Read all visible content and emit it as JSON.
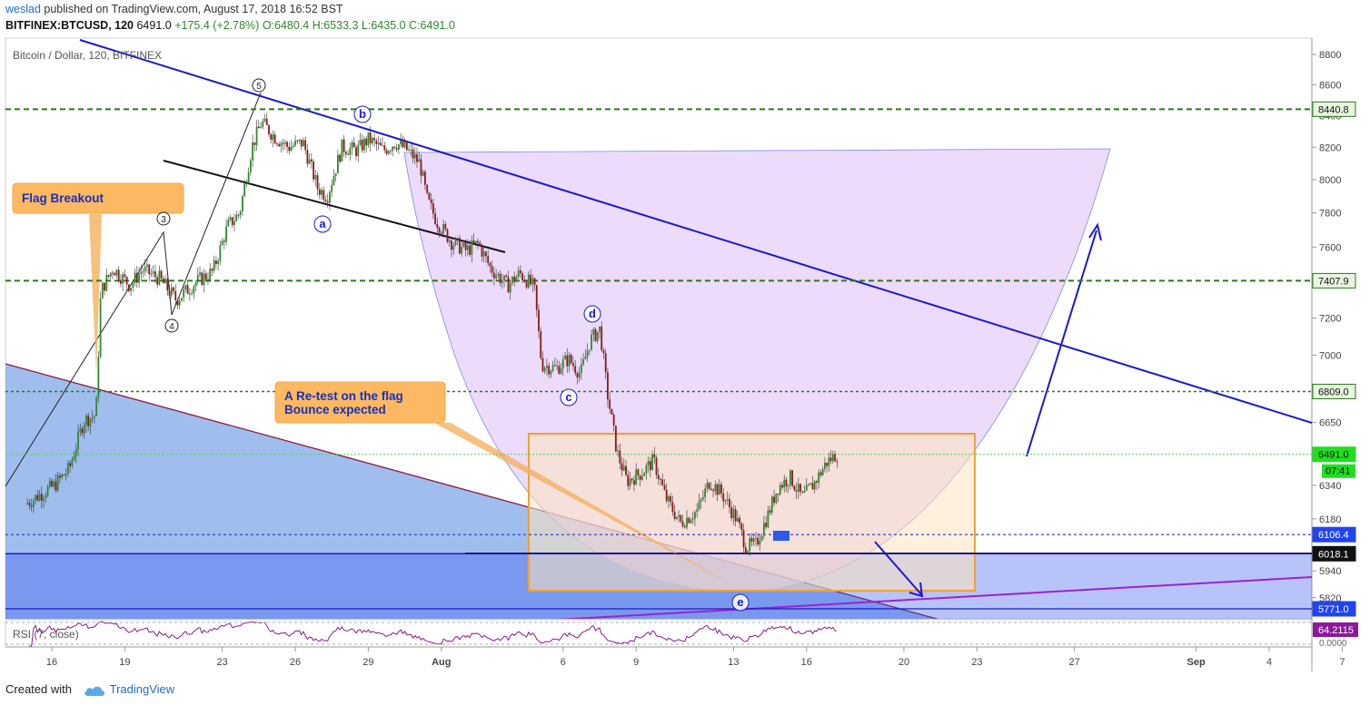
{
  "header": {
    "author": "weslad",
    "published": "published on TradingView.com, August 17, 2018 16:52 BST",
    "symbol": "BITFINEX:BTCUSD, 120",
    "last": "6491.0",
    "change": "+175.4 (+2.78%)",
    "ohlc": "O:6480.4 H:6533.3 L:6435.0 C:6491.0"
  },
  "footer": {
    "created_with": "Created with",
    "brand": "TradingView"
  },
  "chart_data": {
    "type": "candlestick",
    "title": "Bitcoin / Dollar, 120, BITFINEX",
    "y_axis": {
      "min": 5720,
      "max": 8890,
      "ticks": [
        8800,
        8600,
        8400,
        8200,
        8000,
        7800,
        7600,
        7200,
        7000,
        6650,
        6340,
        6180,
        5940,
        5820,
        5771
      ]
    },
    "x_axis": {
      "ticks": [
        {
          "label": "16",
          "day": 16
        },
        {
          "label": "19",
          "day": 19
        },
        {
          "label": "23",
          "day": 23
        },
        {
          "label": "26",
          "day": 26
        },
        {
          "label": "29",
          "day": 29
        },
        {
          "label": "Aug",
          "day": 32
        },
        {
          "label": "6",
          "day": 37
        },
        {
          "label": "9",
          "day": 40
        },
        {
          "label": "13",
          "day": 44
        },
        {
          "label": "16",
          "day": 47
        },
        {
          "label": "20",
          "day": 51
        },
        {
          "label": "23",
          "day": 54
        },
        {
          "label": "27",
          "day": 58
        },
        {
          "label": "Sep",
          "day": 63
        },
        {
          "label": "4",
          "day": 66
        },
        {
          "label": "7",
          "day": 69
        }
      ]
    },
    "price_labels": [
      {
        "value": 8440.8,
        "text": "8440.8",
        "style": "green"
      },
      {
        "value": 7407.9,
        "text": "7407.9",
        "style": "green"
      },
      {
        "value": 6809.0,
        "text": "6809.0",
        "style": "green"
      },
      {
        "value": 6491.0,
        "text": "6491.0",
        "style": "last"
      },
      {
        "value": 6106.4,
        "text": "6106.4",
        "style": "blue"
      },
      {
        "value": 6018.1,
        "text": "6018.1",
        "style": "black"
      },
      {
        "value": 5771.0,
        "text": "5771.0",
        "style": "blue"
      }
    ],
    "countdown": "07:41",
    "horizontal_levels": [
      8440.8,
      7407.9,
      6809.0,
      6491.0,
      6106.4,
      6018.1,
      5771.0
    ],
    "price_path": [
      {
        "day": 15.0,
        "price": 6250
      },
      {
        "day": 16.2,
        "price": 6340
      },
      {
        "day": 16.8,
        "price": 6420
      },
      {
        "day": 17.4,
        "price": 6660
      },
      {
        "day": 17.9,
        "price": 6690
      },
      {
        "day": 18.1,
        "price": 7350
      },
      {
        "day": 18.6,
        "price": 7480
      },
      {
        "day": 19.3,
        "price": 7380
      },
      {
        "day": 19.8,
        "price": 7470
      },
      {
        "day": 20.5,
        "price": 7420
      },
      {
        "day": 21.2,
        "price": 7300
      },
      {
        "day": 22.0,
        "price": 7400
      },
      {
        "day": 22.7,
        "price": 7460
      },
      {
        "day": 23.3,
        "price": 7720
      },
      {
        "day": 23.8,
        "price": 7800
      },
      {
        "day": 24.3,
        "price": 8200
      },
      {
        "day": 24.7,
        "price": 8360
      },
      {
        "day": 25.2,
        "price": 8270
      },
      {
        "day": 25.8,
        "price": 8200
      },
      {
        "day": 26.4,
        "price": 8230
      },
      {
        "day": 27.0,
        "price": 7950
      },
      {
        "day": 27.4,
        "price": 7900
      },
      {
        "day": 28.0,
        "price": 8200
      },
      {
        "day": 28.6,
        "price": 8180
      },
      {
        "day": 29.1,
        "price": 8250
      },
      {
        "day": 29.7,
        "price": 8180
      },
      {
        "day": 30.2,
        "price": 8230
      },
      {
        "day": 30.7,
        "price": 8180
      },
      {
        "day": 31.2,
        "price": 8100
      },
      {
        "day": 31.5,
        "price": 7880
      },
      {
        "day": 31.9,
        "price": 7750
      },
      {
        "day": 32.5,
        "price": 7630
      },
      {
        "day": 33.1,
        "price": 7580
      },
      {
        "day": 33.6,
        "price": 7620
      },
      {
        "day": 34.1,
        "price": 7480
      },
      {
        "day": 34.8,
        "price": 7380
      },
      {
        "day": 35.3,
        "price": 7450
      },
      {
        "day": 35.9,
        "price": 7370
      },
      {
        "day": 36.2,
        "price": 6950
      },
      {
        "day": 36.8,
        "price": 6930
      },
      {
        "day": 37.3,
        "price": 6980
      },
      {
        "day": 37.8,
        "price": 6900
      },
      {
        "day": 38.2,
        "price": 7080
      },
      {
        "day": 38.6,
        "price": 7140
      },
      {
        "day": 38.9,
        "price": 6800
      },
      {
        "day": 39.3,
        "price": 6500
      },
      {
        "day": 39.7,
        "price": 6360
      },
      {
        "day": 40.3,
        "price": 6400
      },
      {
        "day": 40.8,
        "price": 6460
      },
      {
        "day": 41.3,
        "price": 6280
      },
      {
        "day": 41.9,
        "price": 6160
      },
      {
        "day": 42.6,
        "price": 6220
      },
      {
        "day": 43.1,
        "price": 6360
      },
      {
        "day": 43.6,
        "price": 6300
      },
      {
        "day": 44.2,
        "price": 6180
      },
      {
        "day": 44.6,
        "price": 6050
      },
      {
        "day": 45.0,
        "price": 6060
      },
      {
        "day": 45.5,
        "price": 6200
      },
      {
        "day": 45.9,
        "price": 6330
      },
      {
        "day": 46.4,
        "price": 6380
      },
      {
        "day": 46.9,
        "price": 6280
      },
      {
        "day": 47.4,
        "price": 6350
      },
      {
        "day": 47.9,
        "price": 6450
      },
      {
        "day": 48.3,
        "price": 6491
      }
    ],
    "annotations": [
      {
        "text": "Flag Breakout",
        "kind": "callout"
      },
      {
        "text": "A Re-test on the flag\nBounce expected",
        "kind": "callout"
      }
    ],
    "wave_labels": [
      "5",
      "3",
      "4",
      "a",
      "b",
      "c",
      "d",
      "e"
    ],
    "indicator": {
      "name": "RSI (7, close)",
      "value": "64.2115",
      "bottom_tick": "0.0000"
    }
  }
}
